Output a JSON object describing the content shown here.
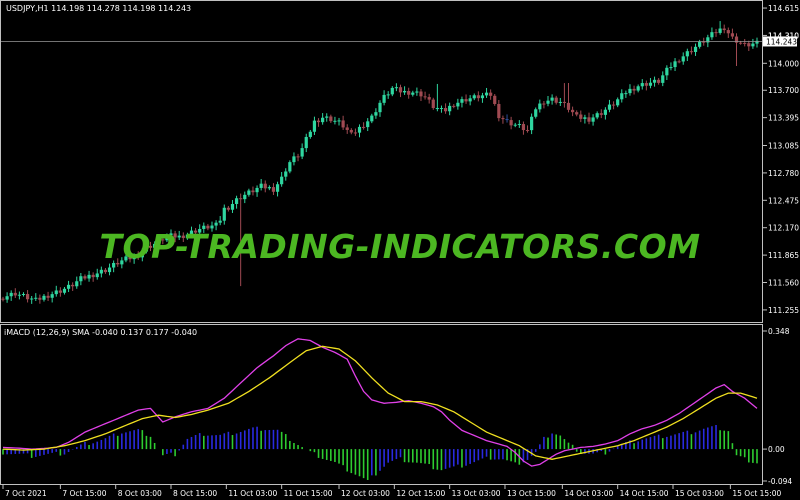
{
  "main_header": "USDJPY,H1  114.198 114.278 114.198 114.243",
  "sub_header": "iMACD (12,26,9) SMA -0.040 0.137 0.177 -0.040",
  "watermark": "TOP-TRADING-INDICATORS.COM",
  "colors": {
    "bull": "#2fd6a0",
    "bear": "#a04a52",
    "bear_dark": "#2f4f9c",
    "macd_line": "#e040e8",
    "signal_line": "#f0e020",
    "hist_pos": "#2a2ae0",
    "hist_neg": "#2ecc30",
    "grid": "#c0c0c0",
    "watermark": "#4cb722"
  },
  "chart_data": [
    {
      "type": "candlestick",
      "title": "USDJPY,H1",
      "ylim": [
        111.165,
        114.66
      ],
      "y_ticks": [
        "114.615",
        "114.310",
        "114.000",
        "113.700",
        "113.395",
        "113.085",
        "112.780",
        "112.475",
        "112.170",
        "111.865",
        "111.560",
        "111.255"
      ],
      "current_price": "114.243",
      "price_tag_above": "114.310",
      "close_path": [
        [
          0,
          111.4
        ],
        [
          6,
          111.44
        ],
        [
          11,
          111.4
        ],
        [
          16,
          111.36
        ],
        [
          22,
          111.42
        ],
        [
          28,
          111.47
        ],
        [
          33,
          111.52
        ],
        [
          38,
          111.6
        ],
        [
          44,
          111.65
        ],
        [
          50,
          111.7
        ],
        [
          56,
          111.78
        ],
        [
          60,
          111.82
        ],
        [
          65,
          111.85
        ],
        [
          70,
          111.95
        ],
        [
          75,
          112.0
        ],
        [
          80,
          112.08
        ],
        [
          86,
          112.07
        ],
        [
          90,
          112.1
        ],
        [
          95,
          112.15
        ],
        [
          100,
          112.18
        ],
        [
          105,
          112.2
        ],
        [
          108,
          112.38
        ],
        [
          110,
          112.4
        ],
        [
          115,
          112.5
        ],
        [
          120,
          112.56
        ],
        [
          126,
          112.63
        ],
        [
          132,
          112.6
        ],
        [
          136,
          112.72
        ],
        [
          138,
          112.82
        ],
        [
          140,
          112.9
        ],
        [
          145,
          113.0
        ],
        [
          148,
          113.15
        ],
        [
          150,
          113.25
        ],
        [
          152,
          113.35
        ],
        [
          156,
          113.4
        ],
        [
          160,
          113.38
        ],
        [
          165,
          113.33
        ],
        [
          170,
          113.2
        ],
        [
          175,
          113.3
        ],
        [
          180,
          113.4
        ],
        [
          185,
          113.6
        ],
        [
          190,
          113.72
        ],
        [
          195,
          113.68
        ],
        [
          200,
          113.68
        ],
        [
          205,
          113.65
        ],
        [
          210,
          113.52
        ],
        [
          215,
          113.46
        ],
        [
          220,
          113.55
        ],
        [
          226,
          113.6
        ],
        [
          232,
          113.63
        ],
        [
          238,
          113.65
        ],
        [
          242,
          113.42
        ],
        [
          246,
          113.35
        ],
        [
          252,
          113.3
        ],
        [
          256,
          113.25
        ],
        [
          260,
          113.5
        ],
        [
          264,
          113.58
        ],
        [
          268,
          113.6
        ],
        [
          272,
          113.57
        ],
        [
          276,
          113.5
        ],
        [
          280,
          113.4
        ],
        [
          286,
          113.38
        ],
        [
          292,
          113.45
        ],
        [
          298,
          113.55
        ],
        [
          304,
          113.68
        ],
        [
          310,
          113.75
        ],
        [
          315,
          113.78
        ],
        [
          320,
          113.8
        ],
        [
          325,
          113.95
        ],
        [
          330,
          114.05
        ],
        [
          336,
          114.15
        ],
        [
          342,
          114.25
        ],
        [
          348,
          114.35
        ],
        [
          352,
          114.4
        ],
        [
          356,
          114.28
        ],
        [
          362,
          114.2
        ],
        [
          368,
          114.22
        ]
      ],
      "wicks": [
        {
          "h": 116,
          "low": 111.52
        },
        {
          "h": 124,
          "low": 113.05
        },
        {
          "h": 212,
          "high": 113.77
        },
        {
          "h": 275,
          "high": 113.78
        },
        {
          "h": 350,
          "high": 114.47
        },
        {
          "h": 358,
          "low": 113.97
        }
      ],
      "bear_dark_positions": [
        246,
        250
      ],
      "n_candles": 185
    },
    {
      "type": "macd",
      "title": "iMACD (12,26,9) SMA",
      "ylim": [
        -0.094,
        0.348
      ],
      "y_ticks": [
        "0.348",
        "0.00",
        "-0.094"
      ],
      "macd_path": [
        [
          0,
          0.005
        ],
        [
          7,
          0.003
        ],
        [
          14,
          0.0
        ],
        [
          20,
          0.002
        ],
        [
          26,
          0.005
        ],
        [
          32,
          0.02
        ],
        [
          40,
          0.05
        ],
        [
          50,
          0.075
        ],
        [
          58,
          0.095
        ],
        [
          66,
          0.115
        ],
        [
          72,
          0.12
        ],
        [
          78,
          0.08
        ],
        [
          84,
          0.095
        ],
        [
          92,
          0.11
        ],
        [
          100,
          0.12
        ],
        [
          108,
          0.15
        ],
        [
          116,
          0.195
        ],
        [
          124,
          0.24
        ],
        [
          132,
          0.275
        ],
        [
          138,
          0.305
        ],
        [
          144,
          0.325
        ],
        [
          150,
          0.32
        ],
        [
          156,
          0.3
        ],
        [
          162,
          0.285
        ],
        [
          168,
          0.265
        ],
        [
          172,
          0.215
        ],
        [
          176,
          0.17
        ],
        [
          180,
          0.145
        ],
        [
          186,
          0.135
        ],
        [
          192,
          0.138
        ],
        [
          198,
          0.143
        ],
        [
          204,
          0.135
        ],
        [
          210,
          0.125
        ],
        [
          214,
          0.11
        ],
        [
          218,
          0.085
        ],
        [
          224,
          0.055
        ],
        [
          230,
          0.04
        ],
        [
          236,
          0.025
        ],
        [
          242,
          0.015
        ],
        [
          246,
          0.008
        ],
        [
          250,
          -0.01
        ],
        [
          254,
          -0.035
        ],
        [
          258,
          -0.05
        ],
        [
          262,
          -0.045
        ],
        [
          266,
          -0.03
        ],
        [
          270,
          -0.015
        ],
        [
          274,
          -0.005
        ],
        [
          278,
          0.0
        ],
        [
          282,
          0.005
        ],
        [
          288,
          0.008
        ],
        [
          294,
          0.015
        ],
        [
          300,
          0.025
        ],
        [
          306,
          0.045
        ],
        [
          312,
          0.06
        ],
        [
          318,
          0.07
        ],
        [
          324,
          0.085
        ],
        [
          330,
          0.105
        ],
        [
          336,
          0.13
        ],
        [
          342,
          0.155
        ],
        [
          348,
          0.18
        ],
        [
          352,
          0.19
        ],
        [
          356,
          0.17
        ],
        [
          362,
          0.15
        ],
        [
          368,
          0.12
        ]
      ],
      "signal_path": [
        [
          0,
          0.0
        ],
        [
          10,
          -0.003
        ],
        [
          20,
          0.0
        ],
        [
          30,
          0.01
        ],
        [
          40,
          0.025
        ],
        [
          50,
          0.045
        ],
        [
          60,
          0.07
        ],
        [
          68,
          0.09
        ],
        [
          76,
          0.1
        ],
        [
          84,
          0.093
        ],
        [
          92,
          0.102
        ],
        [
          100,
          0.115
        ],
        [
          110,
          0.135
        ],
        [
          120,
          0.17
        ],
        [
          130,
          0.21
        ],
        [
          140,
          0.255
        ],
        [
          148,
          0.29
        ],
        [
          156,
          0.303
        ],
        [
          164,
          0.295
        ],
        [
          172,
          0.26
        ],
        [
          180,
          0.21
        ],
        [
          188,
          0.165
        ],
        [
          196,
          0.14
        ],
        [
          204,
          0.14
        ],
        [
          212,
          0.13
        ],
        [
          220,
          0.11
        ],
        [
          228,
          0.08
        ],
        [
          236,
          0.05
        ],
        [
          244,
          0.03
        ],
        [
          252,
          0.01
        ],
        [
          260,
          -0.02
        ],
        [
          268,
          -0.03
        ],
        [
          276,
          -0.02
        ],
        [
          284,
          -0.01
        ],
        [
          292,
          0.0
        ],
        [
          300,
          0.01
        ],
        [
          308,
          0.025
        ],
        [
          316,
          0.045
        ],
        [
          324,
          0.065
        ],
        [
          332,
          0.09
        ],
        [
          340,
          0.12
        ],
        [
          348,
          0.15
        ],
        [
          354,
          0.165
        ],
        [
          360,
          0.165
        ],
        [
          368,
          0.15
        ]
      ],
      "hist_path": [
        [
          0,
          -0.01
        ],
        [
          14,
          -0.02
        ],
        [
          30,
          -0.012
        ],
        [
          40,
          0.015
        ],
        [
          50,
          0.03
        ],
        [
          58,
          0.05
        ],
        [
          66,
          0.055
        ],
        [
          72,
          0.04
        ],
        [
          78,
          -0.02
        ],
        [
          84,
          -0.015
        ],
        [
          90,
          0.03
        ],
        [
          98,
          0.045
        ],
        [
          106,
          0.04
        ],
        [
          114,
          0.05
        ],
        [
          122,
          0.06
        ],
        [
          128,
          0.06
        ],
        [
          134,
          0.055
        ],
        [
          140,
          0.03
        ],
        [
          150,
          -0.01
        ],
        [
          156,
          -0.025
        ],
        [
          162,
          -0.04
        ],
        [
          168,
          -0.06
        ],
        [
          174,
          -0.08
        ],
        [
          178,
          -0.095
        ],
        [
          184,
          -0.06
        ],
        [
          188,
          -0.04
        ],
        [
          194,
          -0.03
        ],
        [
          202,
          -0.04
        ],
        [
          208,
          -0.05
        ],
        [
          214,
          -0.06
        ],
        [
          220,
          -0.055
        ],
        [
          226,
          -0.045
        ],
        [
          232,
          -0.035
        ],
        [
          238,
          -0.025
        ],
        [
          244,
          -0.03
        ],
        [
          250,
          -0.045
        ],
        [
          256,
          -0.03
        ],
        [
          260,
          -0.01
        ],
        [
          264,
          0.03
        ],
        [
          268,
          0.05
        ],
        [
          272,
          0.04
        ],
        [
          276,
          0.015
        ],
        [
          282,
          -0.01
        ],
        [
          288,
          -0.015
        ],
        [
          294,
          -0.01
        ],
        [
          300,
          0.01
        ],
        [
          306,
          0.02
        ],
        [
          312,
          0.03
        ],
        [
          318,
          0.035
        ],
        [
          324,
          0.04
        ],
        [
          330,
          0.045
        ],
        [
          336,
          0.05
        ],
        [
          342,
          0.06
        ],
        [
          348,
          0.065
        ],
        [
          354,
          0.055
        ],
        [
          358,
          -0.02
        ],
        [
          362,
          -0.03
        ],
        [
          368,
          -0.04
        ]
      ],
      "n_bars": 185
    }
  ],
  "x_axis": {
    "max_index": 368,
    "labels": [
      {
        "t": "7 Oct 2021",
        "i": 0
      },
      {
        "t": "7 Oct 15:00",
        "i": 28
      },
      {
        "t": "8 Oct 03:00",
        "i": 55
      },
      {
        "t": "8 Oct 15:00",
        "i": 82
      },
      {
        "t": "11 Oct 03:00",
        "i": 109
      },
      {
        "t": "11 Oct 15:00",
        "i": 136
      },
      {
        "t": "12 Oct 03:00",
        "i": 164
      },
      {
        "t": "12 Oct 15:00",
        "i": 191
      },
      {
        "t": "13 Oct 03:00",
        "i": 218
      },
      {
        "t": "13 Oct 15:00",
        "i": 245
      },
      {
        "t": "14 Oct 03:00",
        "i": 273
      },
      {
        "t": "14 Oct 15:00",
        "i": 300
      },
      {
        "t": "15 Oct 03:00",
        "i": 327
      },
      {
        "t": "15 Oct 15:00",
        "i": 355
      }
    ]
  }
}
